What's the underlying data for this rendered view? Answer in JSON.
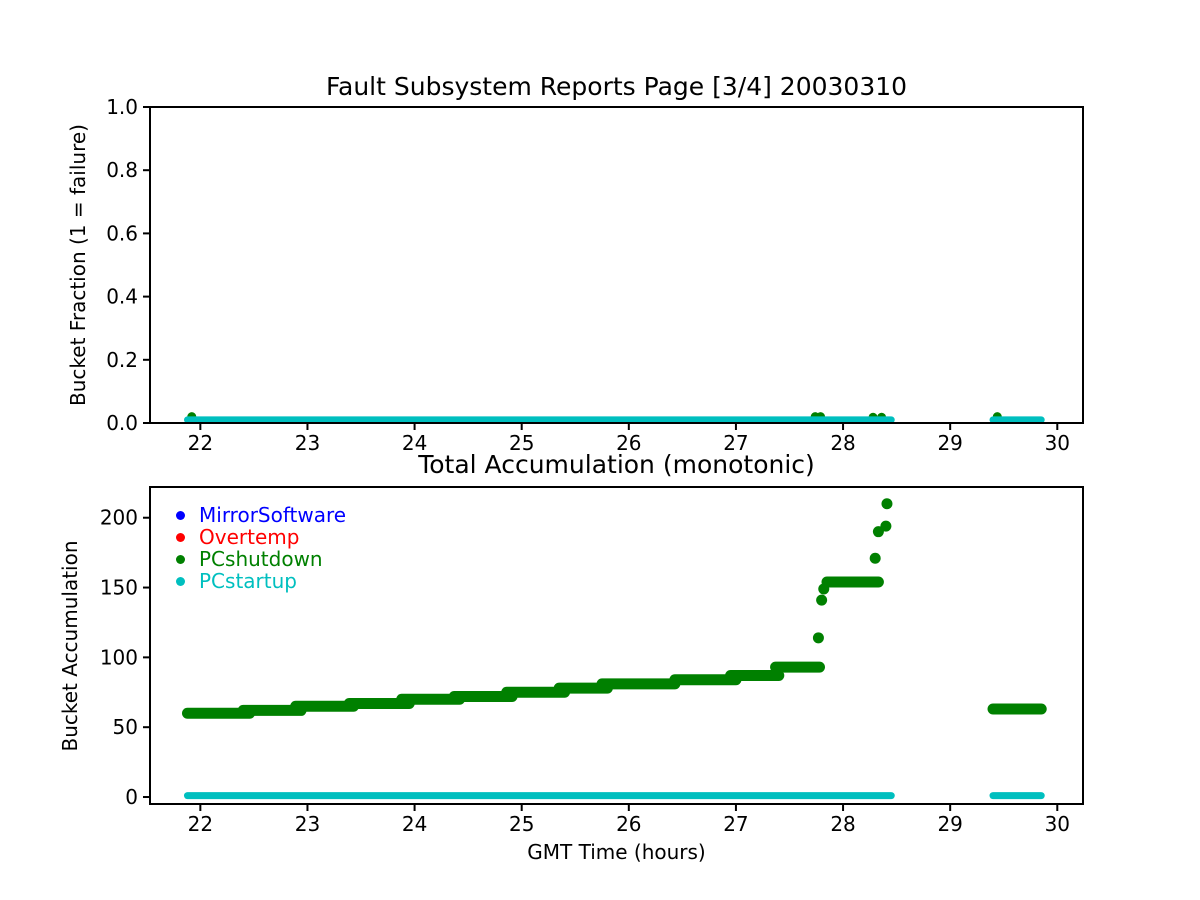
{
  "figure_title": "Fault Subsystem Reports Page [3/4] 20030310",
  "colors": {
    "mirrorsoftware": "#0000ff",
    "overtemp": "#ff0000",
    "pcshutdown": "#008000",
    "pcstartup": "#00bfbf",
    "axis": "#000000"
  },
  "chart_data": [
    {
      "type": "scatter",
      "title": "Fault Subsystem Reports Page [3/4] 20030310",
      "xlabel": "",
      "ylabel": "Bucket Fraction (1 = failure)",
      "xlim": [
        21.53,
        30.24
      ],
      "ylim": [
        0,
        1
      ],
      "xticks": [
        22,
        23,
        24,
        25,
        26,
        27,
        28,
        29,
        30
      ],
      "yticks": [
        0.0,
        0.2,
        0.4,
        0.6,
        0.8,
        1.0
      ],
      "ytick_labels": [
        "0.0",
        "0.2",
        "0.4",
        "0.6",
        "0.8",
        "1.0"
      ],
      "grid": false,
      "series": [
        {
          "name": "MirrorSoftware",
          "color": "#0000ff",
          "size": 4.5,
          "segments": [],
          "points": []
        },
        {
          "name": "Overtemp",
          "color": "#ff0000",
          "size": 4.5,
          "segments": [],
          "points": []
        },
        {
          "name": "PCshutdown",
          "color": "#008000",
          "size": 4.5,
          "segments": [],
          "points": [
            [
              21.92,
              0.02
            ],
            [
              27.74,
              0.02
            ],
            [
              27.79,
              0.02
            ],
            [
              28.28,
              0.018
            ],
            [
              28.36,
              0.018
            ],
            [
              29.44,
              0.02
            ]
          ]
        },
        {
          "name": "PCstartup",
          "color": "#00bfbf",
          "size": 3.5,
          "segments": [
            {
              "x": [
                21.88,
                28.45
              ],
              "y": 0.01
            },
            {
              "x": [
                29.4,
                29.85
              ],
              "y": 0.01
            }
          ],
          "points": []
        }
      ]
    },
    {
      "type": "scatter",
      "title": "Total Accumulation (monotonic)",
      "xlabel": "GMT Time (hours)",
      "ylabel": "Bucket Accumulation",
      "xlim": [
        21.53,
        30.24
      ],
      "ylim": [
        -5,
        222
      ],
      "xticks": [
        22,
        23,
        24,
        25,
        26,
        27,
        28,
        29,
        30
      ],
      "yticks": [
        0,
        50,
        100,
        150,
        200
      ],
      "ytick_labels": [
        "0",
        "50",
        "100",
        "150",
        "200"
      ],
      "grid": false,
      "legend": {
        "position": "upper-left",
        "items": [
          {
            "label": "MirrorSoftware",
            "color": "#0000ff"
          },
          {
            "label": "Overtemp",
            "color": "#ff0000"
          },
          {
            "label": "PCshutdown",
            "color": "#008000"
          },
          {
            "label": "PCstartup",
            "color": "#00bfbf"
          }
        ]
      },
      "series": [
        {
          "name": "MirrorSoftware",
          "color": "#0000ff",
          "size": 5.5,
          "segments": [],
          "points": []
        },
        {
          "name": "Overtemp",
          "color": "#ff0000",
          "size": 5.5,
          "segments": [],
          "points": []
        },
        {
          "name": "PCshutdown",
          "color": "#008000",
          "size": 5.5,
          "segments": [
            {
              "x": [
                21.88,
                22.46
              ],
              "y": 60
            },
            {
              "x": [
                22.4,
                22.94
              ],
              "y": 62
            },
            {
              "x": [
                22.89,
                23.43
              ],
              "y": 65
            },
            {
              "x": [
                23.39,
                23.95
              ],
              "y": 67
            },
            {
              "x": [
                23.88,
                24.42
              ],
              "y": 70
            },
            {
              "x": [
                24.37,
                24.91
              ],
              "y": 72
            },
            {
              "x": [
                24.86,
                25.4
              ],
              "y": 75
            },
            {
              "x": [
                25.35,
                25.8
              ],
              "y": 78
            },
            {
              "x": [
                25.75,
                26.43
              ],
              "y": 81
            },
            {
              "x": [
                26.43,
                27.0
              ],
              "y": 84
            },
            {
              "x": [
                26.95,
                27.4
              ],
              "y": 87
            },
            {
              "x": [
                27.37,
                27.78
              ],
              "y": 93
            },
            {
              "x": [
                27.85,
                28.33
              ],
              "y": 154
            },
            {
              "x": [
                29.4,
                29.85
              ],
              "y": 63
            }
          ],
          "points": [
            [
              27.77,
              114
            ],
            [
              27.8,
              141
            ],
            [
              27.82,
              149
            ],
            [
              28.3,
              171
            ],
            [
              28.33,
              190
            ],
            [
              28.4,
              194
            ],
            [
              28.41,
              210
            ]
          ]
        },
        {
          "name": "PCstartup",
          "color": "#00bfbf",
          "size": 3.5,
          "segments": [
            {
              "x": [
                21.88,
                28.45
              ],
              "y": 1
            },
            {
              "x": [
                29.4,
                29.85
              ],
              "y": 1
            }
          ],
          "points": []
        }
      ]
    }
  ]
}
